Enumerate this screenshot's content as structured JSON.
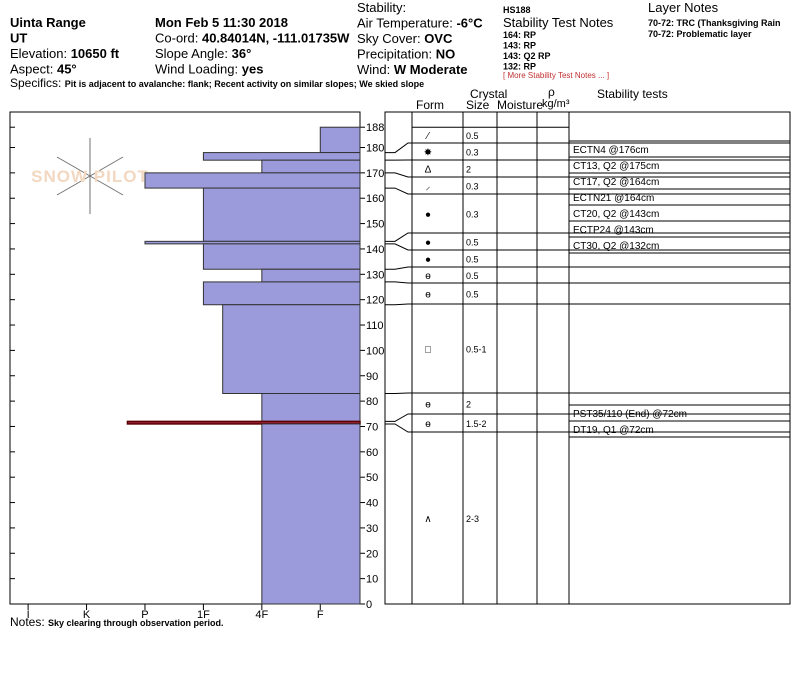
{
  "header": {
    "col1": [
      {
        "value": "Uinta Range"
      },
      {
        "value": "UT"
      },
      {
        "label": "Elevation: ",
        "value": "10650 ft"
      },
      {
        "label": "Aspect: ",
        "value": "45°"
      }
    ],
    "col2": [
      {
        "value": "Mon Feb 5 11:30 2018"
      },
      {
        "label": "Co-ord: ",
        "value": "40.84014N, -111.01735W"
      },
      {
        "label": "Slope Angle: ",
        "value": "36°"
      },
      {
        "label": "Wind Loading: ",
        "value": "yes"
      }
    ],
    "col3": [
      {
        "label": "Stability:"
      },
      {
        "label": "Air Temperature: ",
        "value": "-6°C"
      },
      {
        "label": "Sky Cover: ",
        "value": "OVC"
      },
      {
        "label": "Precipitation: ",
        "value": "NO"
      },
      {
        "label": "Wind:  ",
        "value": "W Moderate"
      }
    ],
    "hs": "HS188",
    "stability_notes_title": "Stability Test Notes",
    "stability_notes": [
      "164: RP",
      "143: RP",
      "143: Q2 RP",
      "132: RP"
    ],
    "more_notes": "[ More Stability Test Notes ... ]",
    "layer_notes_title": "Layer Notes",
    "layer_notes": [
      "70-72: TRC (Thanksgiving Rain",
      "70-72: Problematic layer"
    ],
    "specifics": {
      "label": "Specifics: ",
      "value": "Pit is adjacent to avalanche: flank; Recent activity on similar slopes; We skied slope"
    }
  },
  "watermark": "SNOW PILOT",
  "profile": {
    "ylim": [
      0,
      194
    ],
    "yticks": [
      0,
      10,
      20,
      30,
      40,
      50,
      60,
      70,
      80,
      90,
      100,
      110,
      120,
      130,
      140,
      150,
      160,
      170,
      180,
      188
    ],
    "xlim": [
      -0.31,
      5.68
    ],
    "xticks": [
      {
        "value": 0,
        "label": "I"
      },
      {
        "value": 1,
        "label": "K"
      },
      {
        "value": 2,
        "label": "P"
      },
      {
        "value": 3,
        "label": "1F"
      },
      {
        "value": 4,
        "label": "4F"
      },
      {
        "value": 5,
        "label": "F"
      }
    ],
    "color": "#9b9bdb",
    "layers": [
      {
        "top": 188,
        "bottom": 178,
        "hardness": 5,
        "form": "⁄",
        "size": "0.5"
      },
      {
        "top": 178,
        "bottom": 175,
        "hardness": 3,
        "form": "✸",
        "size": "0.3"
      },
      {
        "top": 175,
        "bottom": 170,
        "hardness": 4,
        "form": "Δ",
        "size": "2"
      },
      {
        "top": 170,
        "bottom": 164,
        "hardness": 2,
        "form": "⸝",
        "size": "0.3"
      },
      {
        "top": 164,
        "bottom": 143,
        "hardness": 3,
        "form": "●",
        "size": "0.3"
      },
      {
        "top": 143,
        "bottom": 142,
        "hardness": 2,
        "form": "●",
        "size": "0.5"
      },
      {
        "top": 142,
        "bottom": 132,
        "hardness": 3,
        "form": "●",
        "size": "0.5"
      },
      {
        "top": 132,
        "bottom": 127,
        "hardness": 4,
        "form": "ɵ",
        "size": "0.5"
      },
      {
        "top": 127,
        "bottom": 118,
        "hardness": 3,
        "form": "ɵ",
        "size": "0.5"
      },
      {
        "top": 118,
        "bottom": 83,
        "hardness": 3.33,
        "form": "□",
        "size": "0.5-1"
      },
      {
        "top": 83,
        "bottom": 72,
        "hardness": 4,
        "form": "ɵ",
        "size": "2"
      },
      {
        "top": 72,
        "bottom": 71,
        "hardness": 1.7,
        "form": "ɵ",
        "size": "1.5-2",
        "color": "#a0203a"
      },
      {
        "top": 71,
        "bottom": 0,
        "hardness": 4,
        "form": "∧",
        "size": "2-3"
      }
    ]
  },
  "table": {
    "crystal": "Crystal",
    "form": "Form",
    "size": "Size",
    "moisture": "Moisture",
    "rho": "ρ",
    "density": "kg/m³",
    "stability": "Stability tests",
    "tests_upper": [
      "ECTN4 @176cm",
      "CT13, Q2 @175cm",
      "CT17, Q2 @164cm",
      "ECTN21 @164cm",
      "CT20, Q2 @143cm",
      "ECTP24 @143cm",
      "CT30, Q2 @132cm"
    ],
    "tests_lower": [
      "PST35/110 (End) @72cm",
      "DT19, Q1 @72cm"
    ]
  },
  "notes": {
    "label": "Notes: ",
    "value": "Sky clearing through observation period."
  }
}
